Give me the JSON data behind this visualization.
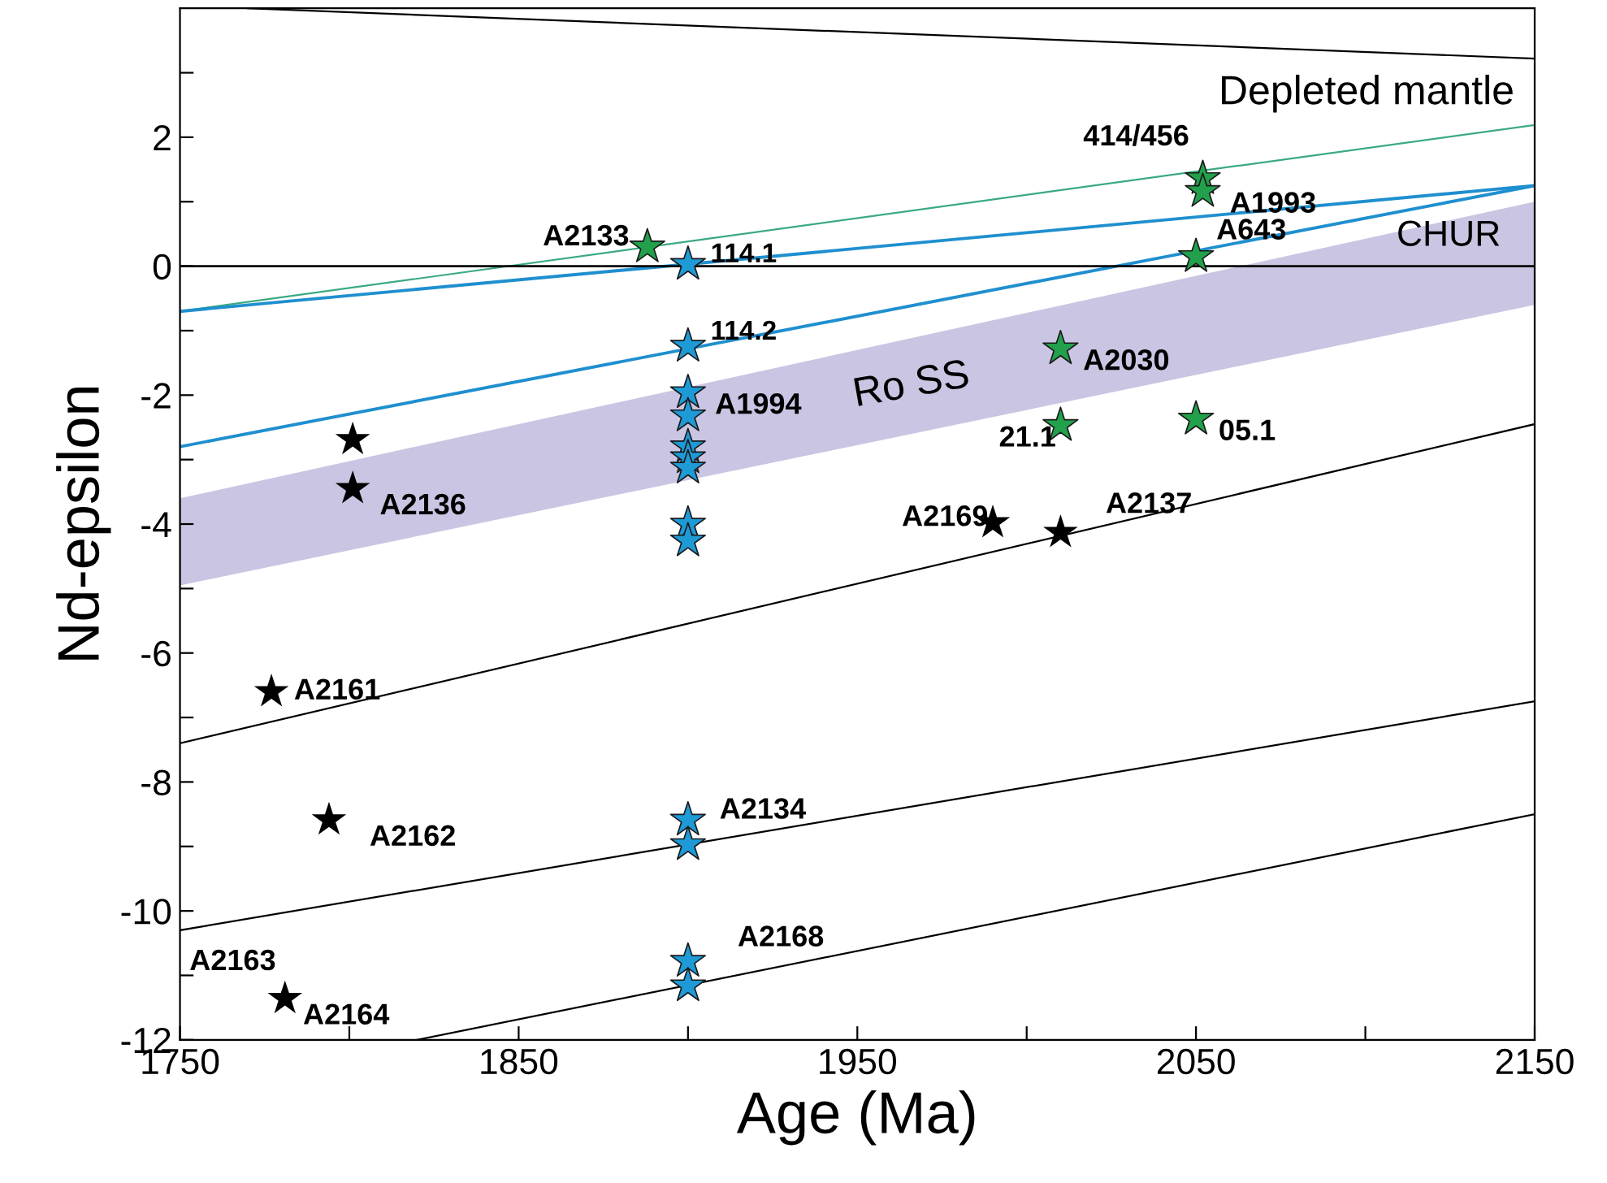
{
  "chart_data": {
    "type": "scatter",
    "xlabel": "Age (Ma)",
    "ylabel": "Nd-epsilon",
    "xlim": [
      1750,
      2150
    ],
    "ylim": [
      -12,
      4
    ],
    "xticks": [
      1750,
      {
        "value": 1800,
        "label": null
      },
      1850,
      {
        "value": 1900,
        "label": null
      },
      1950,
      {
        "value": 2000,
        "label": null
      },
      2050,
      {
        "value": 2100,
        "label": null
      },
      2150
    ],
    "yticks": [
      -12,
      {
        "value": -11,
        "label": null
      },
      -10,
      {
        "value": -9,
        "label": null
      },
      -8,
      {
        "value": -7,
        "label": null
      },
      -6,
      {
        "value": -5,
        "label": null
      },
      -4,
      {
        "value": -3,
        "label": null
      },
      -2,
      {
        "value": -1,
        "label": null
      },
      0,
      {
        "value": 1,
        "label": null
      },
      2,
      {
        "value": 3,
        "label": null
      }
    ],
    "grid": false,
    "legend": false,
    "ref_lines": [
      {
        "axis": "y",
        "value": 0,
        "label": "CHUR",
        "color": "#000000"
      }
    ],
    "series": [
      {
        "type": "area",
        "name": "Ro SS",
        "color": "#c9c5e2",
        "x": [
          1750,
          2150,
          2150,
          1750
        ],
        "values": [
          -3.6,
          1.0,
          -0.6,
          -4.95
        ]
      },
      {
        "type": "line",
        "name": "Depleted mantle",
        "color": "#000000",
        "x": [
          1770,
          2150
        ],
        "values": [
          4.0,
          3.22
        ]
      },
      {
        "type": "line",
        "color": "#3aaa80",
        "x": [
          1750,
          2150
        ],
        "values": [
          -0.7,
          2.19
        ]
      },
      {
        "type": "line",
        "color": "#1f8fcf",
        "x": [
          1750,
          2150
        ],
        "values": [
          -0.7,
          1.25
        ]
      },
      {
        "type": "line",
        "color": "#1f8fcf",
        "x": [
          1750,
          2150
        ],
        "values": [
          -2.8,
          1.25
        ]
      },
      {
        "type": "line",
        "color": "#000000",
        "x": [
          1750,
          2150
        ],
        "values": [
          -7.4,
          -2.45
        ]
      },
      {
        "type": "line",
        "color": "#000000",
        "x": [
          1750,
          2150
        ],
        "values": [
          -10.3,
          -6.75
        ]
      },
      {
        "type": "line",
        "color": "#000000",
        "x": [
          1820,
          2150
        ],
        "values": [
          -12,
          -8.5
        ]
      },
      {
        "marker": "star",
        "color": "#000000",
        "x": [
          1801,
          1801,
          1777,
          1794,
          1781,
          1990,
          2010
        ],
        "values": [
          -2.69,
          -3.45,
          -6.6,
          -8.59,
          -11.36,
          -3.98,
          -4.13
        ]
      },
      {
        "marker": "star",
        "color": "#1e9ad6",
        "x": [
          1900,
          1900,
          1900,
          1900,
          1900,
          1900,
          1900,
          1900,
          1900,
          1900,
          1900,
          1900,
          1900
        ],
        "values": [
          0.03,
          -1.24,
          -1.96,
          -2.32,
          -2.8,
          -2.97,
          -3.13,
          -4.0,
          -4.26,
          -8.59,
          -8.97,
          -10.78,
          -11.16
        ]
      },
      {
        "marker": "star",
        "color": "#22a04b",
        "x": [
          1888,
          2052,
          2052,
          2050,
          2010,
          2010,
          2050
        ],
        "values": [
          0.3,
          1.36,
          1.16,
          0.15,
          -1.28,
          -2.47,
          -2.37
        ]
      }
    ],
    "annotations": [
      {
        "text": "A2133",
        "x": 1888,
        "y": 0.3
      },
      {
        "text": "114.1",
        "x": 1900,
        "y": 0.03
      },
      {
        "text": "114.2",
        "x": 1900,
        "y": -1.24
      },
      {
        "text": "A1994",
        "x": 1900,
        "y": -1.96
      },
      {
        "text": "A2136",
        "x": 1801,
        "y": -3.45
      },
      {
        "text": "A2161",
        "x": 1777,
        "y": -6.6
      },
      {
        "text": "A2162",
        "x": 1794,
        "y": -8.59
      },
      {
        "text": "A2134",
        "x": 1900,
        "y": -8.59
      },
      {
        "text": "A2163",
        "x": 1781,
        "y": -11.36
      },
      {
        "text": "A2164",
        "x": 1781,
        "y": -11.36
      },
      {
        "text": "A2168",
        "x": 1900,
        "y": -10.78
      },
      {
        "text": "414/456",
        "x": 2052,
        "y": 1.36
      },
      {
        "text": "A1993",
        "x": 2052,
        "y": 1.16
      },
      {
        "text": "A643",
        "x": 2050,
        "y": 0.15
      },
      {
        "text": "A2030",
        "x": 2010,
        "y": -1.28
      },
      {
        "text": "21.1",
        "x": 2010,
        "y": -2.47
      },
      {
        "text": "05.1",
        "x": 2050,
        "y": -2.37
      },
      {
        "text": "A2169",
        "x": 1990,
        "y": -3.98
      },
      {
        "text": "A2137",
        "x": 2010,
        "y": -4.13
      }
    ]
  }
}
